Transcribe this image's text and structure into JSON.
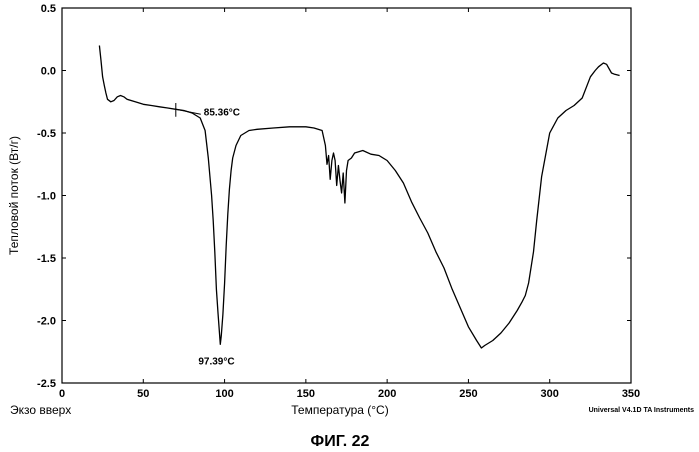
{
  "chart_data": {
    "type": "line",
    "title": "",
    "xlabel": "Температура  (°C)",
    "ylabel": "Тепловой поток (Вт/г)",
    "xlim": [
      0,
      350
    ],
    "ylim": [
      -2.5,
      0.5
    ],
    "x_ticks": [
      0,
      50,
      100,
      150,
      200,
      250,
      300,
      350
    ],
    "y_ticks": [
      0.5,
      0.0,
      -0.5,
      -1.0,
      -1.5,
      -2.0,
      -2.5
    ],
    "y_tick_labels": [
      "0.5",
      "0.0",
      "-0.5",
      "-1.0",
      "-1.5",
      "-2.0",
      "-2.5"
    ],
    "grid": false,
    "series": [
      {
        "name": "Тепловой поток",
        "x": [
          23,
          24,
          25,
          26,
          27,
          28,
          30,
          32,
          34,
          36,
          38,
          40,
          45,
          50,
          55,
          60,
          65,
          70,
          75,
          80,
          85,
          88,
          90,
          92,
          93,
          94,
          95,
          96,
          97.39,
          98,
          99,
          100,
          101,
          102,
          103,
          104,
          105,
          107,
          110,
          115,
          120,
          130,
          140,
          145,
          150,
          155,
          160,
          162,
          163,
          164,
          165,
          166,
          167,
          168,
          169,
          170,
          171,
          172,
          173,
          174,
          175,
          176,
          178,
          180,
          185,
          190,
          195,
          200,
          205,
          210,
          215,
          220,
          225,
          230,
          235,
          240,
          245,
          250,
          255,
          258,
          260,
          265,
          270,
          275,
          280,
          283,
          285,
          287,
          290,
          292,
          295,
          300,
          305,
          310,
          315,
          320,
          325,
          328,
          330,
          333,
          335,
          338,
          340,
          343
        ],
        "y": [
          0.2,
          0.08,
          -0.05,
          -0.12,
          -0.18,
          -0.23,
          -0.25,
          -0.24,
          -0.21,
          -0.2,
          -0.21,
          -0.23,
          -0.25,
          -0.27,
          -0.28,
          -0.29,
          -0.3,
          -0.31,
          -0.32,
          -0.34,
          -0.38,
          -0.48,
          -0.7,
          -1.0,
          -1.2,
          -1.45,
          -1.75,
          -1.95,
          -2.19,
          -2.12,
          -1.95,
          -1.7,
          -1.4,
          -1.15,
          -0.95,
          -0.8,
          -0.7,
          -0.6,
          -0.52,
          -0.48,
          -0.47,
          -0.46,
          -0.45,
          -0.45,
          -0.45,
          -0.46,
          -0.48,
          -0.6,
          -0.75,
          -0.68,
          -0.87,
          -0.72,
          -0.66,
          -0.72,
          -0.92,
          -0.76,
          -0.88,
          -0.98,
          -0.82,
          -1.06,
          -0.8,
          -0.72,
          -0.7,
          -0.66,
          -0.64,
          -0.67,
          -0.68,
          -0.72,
          -0.8,
          -0.9,
          -1.05,
          -1.18,
          -1.3,
          -1.45,
          -1.58,
          -1.75,
          -1.9,
          -2.05,
          -2.16,
          -2.22,
          -2.2,
          -2.16,
          -2.1,
          -2.02,
          -1.92,
          -1.85,
          -1.8,
          -1.7,
          -1.45,
          -1.2,
          -0.85,
          -0.5,
          -0.38,
          -0.32,
          -0.28,
          -0.22,
          -0.05,
          0.0,
          0.03,
          0.06,
          0.05,
          -0.02,
          -0.03,
          -0.04
        ]
      }
    ],
    "annotations": [
      {
        "text": "85.36°C",
        "x": 85.36,
        "y": -0.35
      },
      {
        "text": "97.39°C",
        "x": 97.39,
        "y": -2.19
      }
    ]
  },
  "labels": {
    "exo": "Экзо вверх",
    "instrument": "Universal V4.1D TA Instruments",
    "figure": "ФИГ. 22"
  }
}
